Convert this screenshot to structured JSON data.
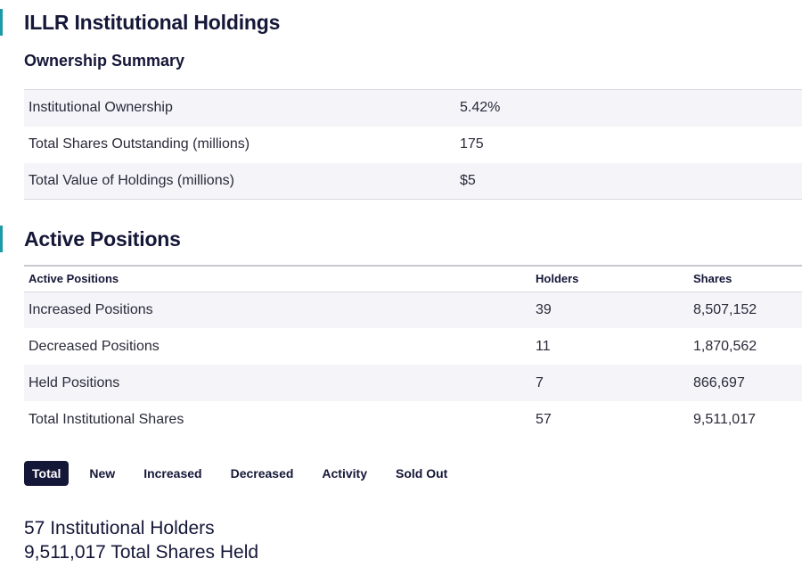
{
  "page": {
    "title": "ILLR Institutional Holdings"
  },
  "ownership_summary": {
    "heading": "Ownership Summary",
    "rows": [
      {
        "label": "Institutional Ownership",
        "value": "5.42%"
      },
      {
        "label": "Total Shares Outstanding (millions)",
        "value": "175"
      },
      {
        "label": "Total Value of Holdings (millions)",
        "value": "$5"
      }
    ]
  },
  "active_positions": {
    "heading": "Active Positions",
    "columns": [
      "Active Positions",
      "Holders",
      "Shares"
    ],
    "rows": [
      {
        "label": "Increased Positions",
        "holders": "39",
        "shares": "8,507,152"
      },
      {
        "label": "Decreased Positions",
        "holders": "11",
        "shares": "1,870,562"
      },
      {
        "label": "Held Positions",
        "holders": "7",
        "shares": "866,697"
      },
      {
        "label": "Total Institutional Shares",
        "holders": "57",
        "shares": "9,511,017"
      }
    ]
  },
  "tabs": [
    {
      "label": "Total",
      "active": true
    },
    {
      "label": "New",
      "active": false
    },
    {
      "label": "Increased",
      "active": false
    },
    {
      "label": "Decreased",
      "active": false
    },
    {
      "label": "Activity",
      "active": false
    },
    {
      "label": "Sold Out",
      "active": false
    }
  ],
  "totals": {
    "holders_line": "57 Institutional Holders",
    "shares_line": "9,511,017 Total Shares Held"
  },
  "colors": {
    "accent": "#1d9aa8",
    "navy": "#151738",
    "row_stripe": "#f4f4f9"
  }
}
